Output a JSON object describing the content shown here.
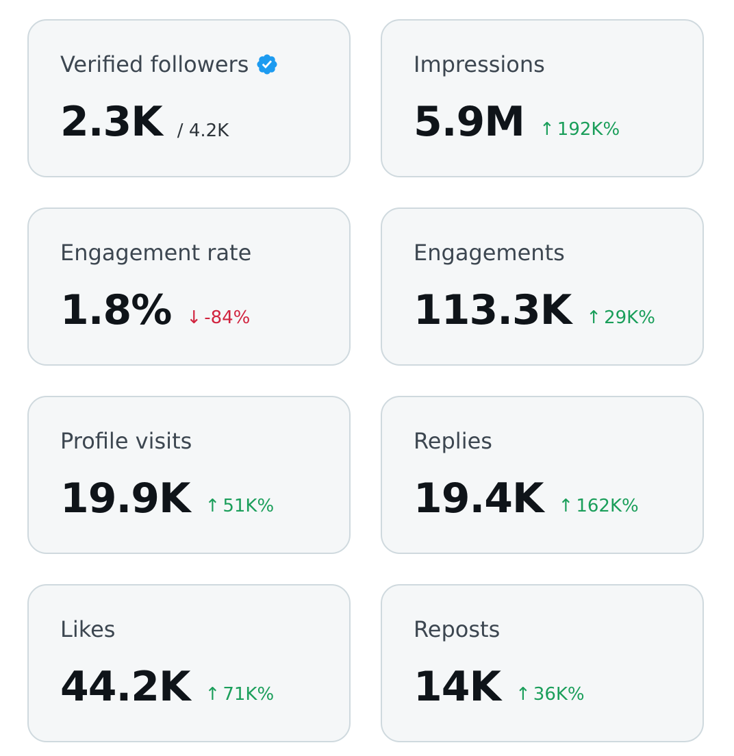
{
  "cards": [
    {
      "title": "Verified followers",
      "value": "2.3K",
      "sub_total": "/ 4.2K",
      "icon": "verified-badge-icon",
      "icon_color": "#1d9bf0"
    },
    {
      "title": "Impressions",
      "value": "5.9M",
      "delta": "192K%",
      "delta_arrow": "↑",
      "direction": "up"
    },
    {
      "title": "Engagement rate",
      "value": "1.8%",
      "delta": "-84%",
      "delta_arrow": "↓",
      "direction": "down"
    },
    {
      "title": "Engagements",
      "value": "113.3K",
      "delta": "29K%",
      "delta_arrow": "↑",
      "direction": "up"
    },
    {
      "title": "Profile visits",
      "value": "19.9K",
      "delta": "51K%",
      "delta_arrow": "↑",
      "direction": "up"
    },
    {
      "title": "Replies",
      "value": "19.4K",
      "delta": "162K%",
      "delta_arrow": "↑",
      "direction": "up"
    },
    {
      "title": "Likes",
      "value": "44.2K",
      "delta": "71K%",
      "delta_arrow": "↑",
      "direction": "up"
    },
    {
      "title": "Reposts",
      "value": "14K",
      "delta": "36K%",
      "delta_arrow": "↑",
      "direction": "up"
    }
  ],
  "colors": {
    "up": "#1a9e5a",
    "down": "#d1243f",
    "card_bg": "#f5f7f8",
    "card_border": "#cfd9de"
  }
}
